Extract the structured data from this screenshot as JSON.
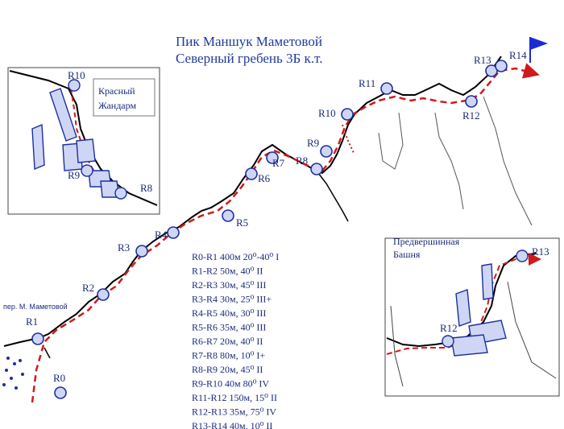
{
  "title": {
    "line1": "Пик Маншук Маметовой",
    "line2": "Северный гребень 3Б к.т."
  },
  "pass_label": "пер. М. Маметовой",
  "insets": {
    "left": {
      "title_line1": "Красный",
      "title_line2": "Жандарм"
    },
    "right": {
      "title_line1": "Предвершинная",
      "title_line2": "Башня"
    }
  },
  "route_points": {
    "r0": "R0",
    "r1": "R1",
    "r2": "R2",
    "r3": "R3",
    "r4": "R4",
    "r5": "R5",
    "r6": "R6",
    "r7": "R7",
    "r8": "R8",
    "r9": "R9",
    "r10": "R10",
    "r11": "R11",
    "r12": "R12",
    "r13": "R13",
    "r14": "R14"
  },
  "inset_labels": {
    "left_r10": "R10",
    "left_r9": "R9",
    "left_r8": "R8",
    "right_r12": "R12",
    "right_r13": "R13"
  },
  "legend": [
    "R0-R1     400м 20⁰-40⁰ I",
    "R1-R2    50м, 40⁰ II",
    "R2-R3    30м, 45⁰ III",
    "R3-R4    30м, 25⁰ III+",
    "R4-R5    40м, 30⁰ III",
    "R5-R6    35м, 40⁰ III",
    "R6-R7    20м, 40⁰ II",
    "R7-R8    80м, 10⁰ I+",
    "R8-R9    20м, 45⁰ II",
    "R9-R10   40м 80⁰ IV",
    "R11-R12  150м, 15⁰ II",
    "R12-R13  35м, 75⁰ IV",
    "R13-R14  40м, 10⁰ II"
  ],
  "colors": {
    "route": "#d11a1a",
    "anchor": "#1c2fa0",
    "ridge": "#000000",
    "flag": "#1a2bd6",
    "text": "#1b2a7a"
  },
  "icons": [
    "belay-station-icon",
    "summit-flag-icon",
    "arrow-icon"
  ]
}
